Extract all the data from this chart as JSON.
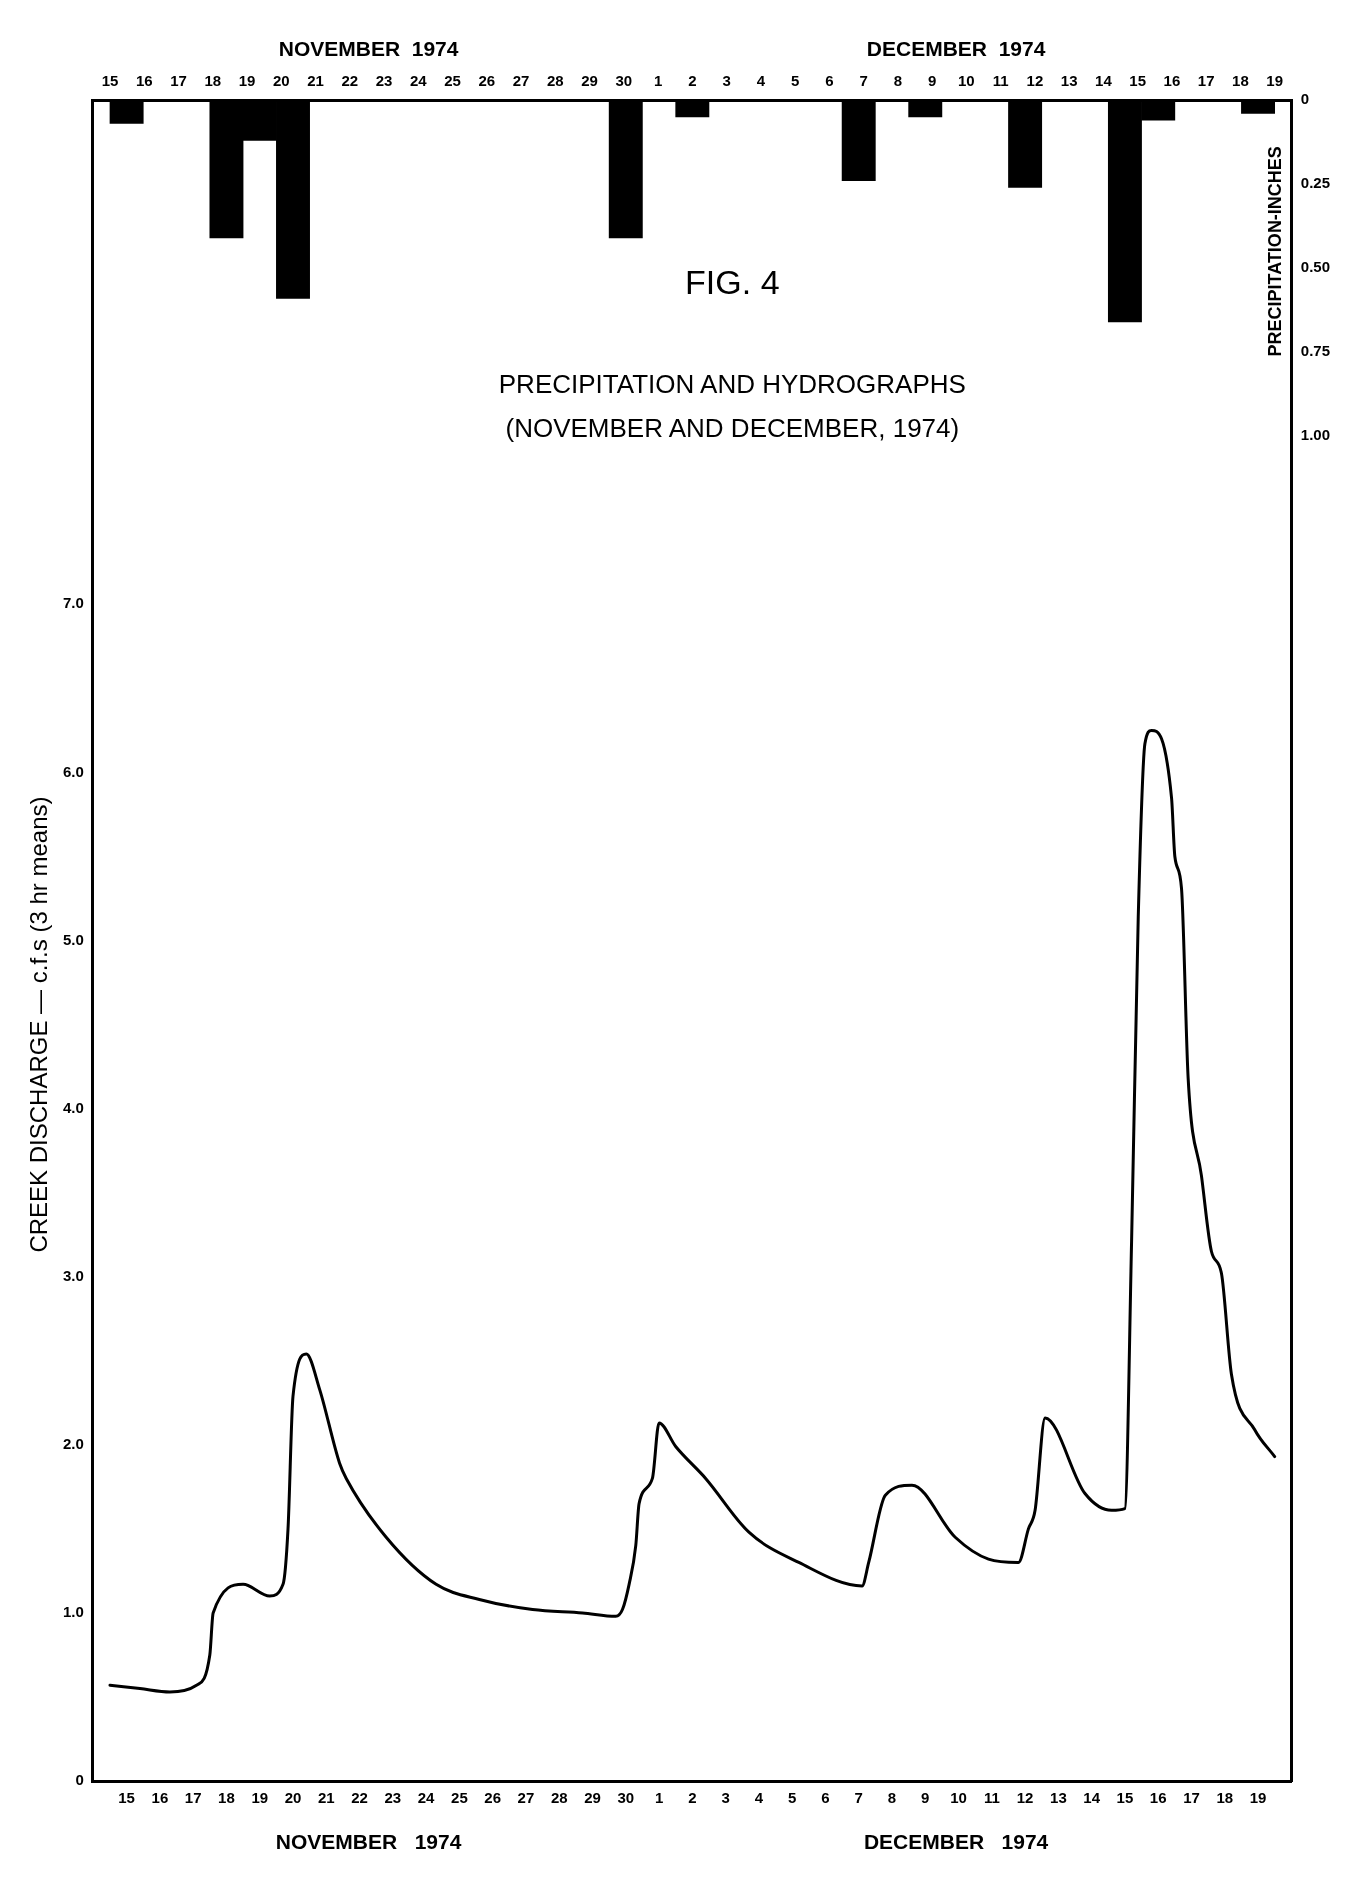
{
  "chart_data": {
    "type": "line",
    "title": "FIG. 4",
    "subtitle": "PRECIPITATION AND HYDROGRAPHS\n(NOVEMBER AND DECEMBER, 1974)",
    "ylabel": "CREEK DISCHARGE — c.f.s (3 hr means)",
    "y2label": "PRECIPITATION-INCHES",
    "annotations": [
      "NOVEMBER   1974",
      "DECEMBER   1974",
      "NOVEMBER  1974",
      "DECEMBER  1974"
    ],
    "xlim": [
      "1974-11-15",
      "1974-12-20"
    ],
    "xticks": [
      {
        "value": "1974-11-15T12:00",
        "label": "15"
      },
      {
        "value": "1974-11-16T12:00",
        "label": "16"
      },
      {
        "value": "1974-11-17T12:00",
        "label": "17"
      },
      {
        "value": "1974-11-18T12:00",
        "label": "18"
      },
      {
        "value": "1974-11-19T12:00",
        "label": "19"
      },
      {
        "value": "1974-11-20T12:00",
        "label": "20"
      },
      {
        "value": "1974-11-21T12:00",
        "label": "21"
      },
      {
        "value": "1974-11-22T12:00",
        "label": "22"
      },
      {
        "value": "1974-11-23T12:00",
        "label": "23"
      },
      {
        "value": "1974-11-24T12:00",
        "label": "24"
      },
      {
        "value": "1974-11-25T12:00",
        "label": "25"
      },
      {
        "value": "1974-11-26T12:00",
        "label": "26"
      },
      {
        "value": "1974-11-27T12:00",
        "label": "27"
      },
      {
        "value": "1974-11-28T12:00",
        "label": "28"
      },
      {
        "value": "1974-11-29T12:00",
        "label": "29"
      },
      {
        "value": "1974-11-30T12:00",
        "label": "30"
      },
      {
        "value": "1974-12-01T12:00",
        "label": "1"
      },
      {
        "value": "1974-12-02T12:00",
        "label": "2"
      },
      {
        "value": "1974-12-03T12:00",
        "label": "3"
      },
      {
        "value": "1974-12-04T12:00",
        "label": "4"
      },
      {
        "value": "1974-12-05T12:00",
        "label": "5"
      },
      {
        "value": "1974-12-06T12:00",
        "label": "6"
      },
      {
        "value": "1974-12-07T12:00",
        "label": "7"
      },
      {
        "value": "1974-12-08T12:00",
        "label": "8"
      },
      {
        "value": "1974-12-09T12:00",
        "label": "9"
      },
      {
        "value": "1974-12-10T12:00",
        "label": "10"
      },
      {
        "value": "1974-12-11T12:00",
        "label": "11"
      },
      {
        "value": "1974-12-12T12:00",
        "label": "12"
      },
      {
        "value": "1974-12-13T12:00",
        "label": "13"
      },
      {
        "value": "1974-12-14T12:00",
        "label": "14"
      },
      {
        "value": "1974-12-15T12:00",
        "label": "15"
      },
      {
        "value": "1974-12-16T12:00",
        "label": "16"
      },
      {
        "value": "1974-12-17T12:00",
        "label": "17"
      },
      {
        "value": "1974-12-18T12:00",
        "label": "18"
      },
      {
        "value": "1974-12-19T12:00",
        "label": "19"
      }
    ],
    "x2lim": [
      "1974-11-15",
      "1974-12-20"
    ],
    "x2ticks": [
      {
        "value": "1974-11-15T12:00",
        "label": "15"
      },
      {
        "value": "1974-11-16T12:00",
        "label": "16"
      },
      {
        "value": "1974-11-17T12:00",
        "label": "17"
      },
      {
        "value": "1974-11-18T12:00",
        "label": "18"
      },
      {
        "value": "1974-11-19T12:00",
        "label": "19"
      },
      {
        "value": "1974-11-20T12:00",
        "label": "20"
      },
      {
        "value": "1974-11-21T12:00",
        "label": "21"
      },
      {
        "value": "1974-11-22T12:00",
        "label": "22"
      },
      {
        "value": "1974-11-23T12:00",
        "label": "23"
      },
      {
        "value": "1974-11-24T12:00",
        "label": "24"
      },
      {
        "value": "1974-11-25T12:00",
        "label": "25"
      },
      {
        "value": "1974-11-26T12:00",
        "label": "26"
      },
      {
        "value": "1974-11-27T12:00",
        "label": "27"
      },
      {
        "value": "1974-11-28T12:00",
        "label": "28"
      },
      {
        "value": "1974-11-29T12:00",
        "label": "29"
      },
      {
        "value": "1974-11-30T12:00",
        "label": "30"
      },
      {
        "value": "1974-12-01T12:00",
        "label": "1"
      },
      {
        "value": "1974-12-02T12:00",
        "label": "2"
      },
      {
        "value": "1974-12-03T12:00",
        "label": "3"
      },
      {
        "value": "1974-12-04T12:00",
        "label": "4"
      },
      {
        "value": "1974-12-05T12:00",
        "label": "5"
      },
      {
        "value": "1974-12-06T12:00",
        "label": "6"
      },
      {
        "value": "1974-12-07T12:00",
        "label": "7"
      },
      {
        "value": "1974-12-08T12:00",
        "label": "8"
      },
      {
        "value": "1974-12-09T12:00",
        "label": "9"
      },
      {
        "value": "1974-12-10T12:00",
        "label": "10"
      },
      {
        "value": "1974-12-11T12:00",
        "label": "11"
      },
      {
        "value": "1974-12-12T12:00",
        "label": "12"
      },
      {
        "value": "1974-12-13T12:00",
        "label": "13"
      },
      {
        "value": "1974-12-14T12:00",
        "label": "14"
      },
      {
        "value": "1974-12-15T12:00",
        "label": "15"
      },
      {
        "value": "1974-12-16T12:00",
        "label": "16"
      },
      {
        "value": "1974-12-17T12:00",
        "label": "17"
      },
      {
        "value": "1974-12-18T12:00",
        "label": "18"
      },
      {
        "value": "1974-12-19T12:00",
        "label": "19"
      }
    ],
    "ylim": [
      0,
      10
    ],
    "yticks": [
      0,
      {
        "value": 1,
        "label": "1.0"
      },
      {
        "value": 2,
        "label": "2.0"
      },
      {
        "value": 3,
        "label": "3.0"
      },
      {
        "value": 4,
        "label": "4.0"
      },
      {
        "value": 5,
        "label": "5.0"
      },
      {
        "value": 6,
        "label": "6.0"
      },
      {
        "value": 7,
        "label": "7.0"
      }
    ],
    "y2lim": [
      5,
      0
    ],
    "y2ticks": [
      0,
      {
        "value": 0.25,
        "label": "0.25"
      },
      {
        "value": 0.5,
        "label": "0.50"
      },
      {
        "value": 0.75,
        "label": "0.75"
      },
      {
        "value": 1,
        "label": "1.00"
      }
    ],
    "grid": false,
    "legend": false,
    "marker": "none",
    "line_style": "solid",
    "series": [
      {
        "type": "bar",
        "axis": "y2",
        "color": "#000000",
        "x": [
          "1974-11-15T12:00",
          "1974-11-18T12:00",
          "1974-11-19T12:00",
          "1974-11-20T12:00",
          "1974-11-30T12:00",
          "1974-12-02T12:00",
          "1974-12-07T12:00",
          "1974-12-09T12:00",
          "1974-12-12T12:00",
          "1974-12-15T12:00",
          "1974-12-16T12:00",
          "1974-12-19T12:00"
        ],
        "values": [
          0.07,
          0.41,
          0.12,
          0.59,
          0.41,
          0.05,
          0.24,
          0.05,
          0.26,
          0.66,
          0.06,
          0.04
        ]
      },
      {
        "color": "#000000",
        "x": [
          "1974-11-15T00:00",
          "1974-11-15T21:36",
          "1974-11-16T19:12",
          "1974-11-17T14:24",
          "1974-11-18T00:00",
          "1974-11-18T02:24",
          "1974-11-19T00:00",
          "1974-11-19T19:12",
          "1974-11-20T04:48",
          "1974-11-20T08:24",
          "1974-11-20T12:00",
          "1974-11-20T21:36",
          "1974-11-21T07:12",
          "1974-11-21T21:36",
          "1974-11-22T02:24",
          "1974-11-23T07:12",
          "1974-11-24T19:12",
          "1974-11-26T02:24",
          "1974-11-27T16:48",
          "1974-11-29T04:48",
          "1974-11-30T04:48",
          "1974-11-30T09:36",
          "1974-11-30T14:24",
          "1974-11-30T19:12",
          "1974-11-30T21:36",
          "1974-12-01T07:12",
          "1974-12-01T12:00",
          "1974-12-02T00:00",
          "1974-12-02T21:36",
          "1974-12-04T04:48",
          "1974-12-05T16:48",
          "1974-12-07T14:24",
          "1974-12-07T19:12",
          "1974-12-08T07:12",
          "1974-12-09T02:24",
          "1974-12-10T09:36",
          "1974-12-11T09:36",
          "1974-12-12T07:12",
          "1974-12-12T14:24",
          "1974-12-12T19:12",
          "1974-12-13T02:24",
          "1974-12-14T07:12",
          "1974-12-15T02:24",
          "1974-12-15T12:00",
          "1974-12-15T16:48",
          "1974-12-15T21:36",
          "1974-12-16T02:24",
          "1974-12-16T07:12",
          "1974-12-16T21:36",
          "1974-12-17T00:00",
          "1974-12-17T04:48",
          "1974-12-17T09:36",
          "1974-12-17T19:12",
          "1974-12-18T02:24",
          "1974-12-18T09:36",
          "1974-12-18T16:48",
          "1974-12-19T09:36",
          "1974-12-20T00:00"
        ],
        "values": [
          0.57,
          0.55,
          0.53,
          0.57,
          0.75,
          1.0,
          1.17,
          1.1,
          1.17,
          1.5,
          2.29,
          2.54,
          2.33,
          1.89,
          1.8,
          1.45,
          1.17,
          1.08,
          1.02,
          1.0,
          0.98,
          1.02,
          1.17,
          1.4,
          1.65,
          1.8,
          2.13,
          1.99,
          1.8,
          1.48,
          1.3,
          1.16,
          1.3,
          1.7,
          1.76,
          1.45,
          1.32,
          1.3,
          1.5,
          1.61,
          2.16,
          1.71,
          1.61,
          1.62,
          3.21,
          5.14,
          6.17,
          6.25,
          5.85,
          5.5,
          5.31,
          4.18,
          3.6,
          3.15,
          3.02,
          2.42,
          2.09,
          1.93
        ]
      }
    ]
  }
}
